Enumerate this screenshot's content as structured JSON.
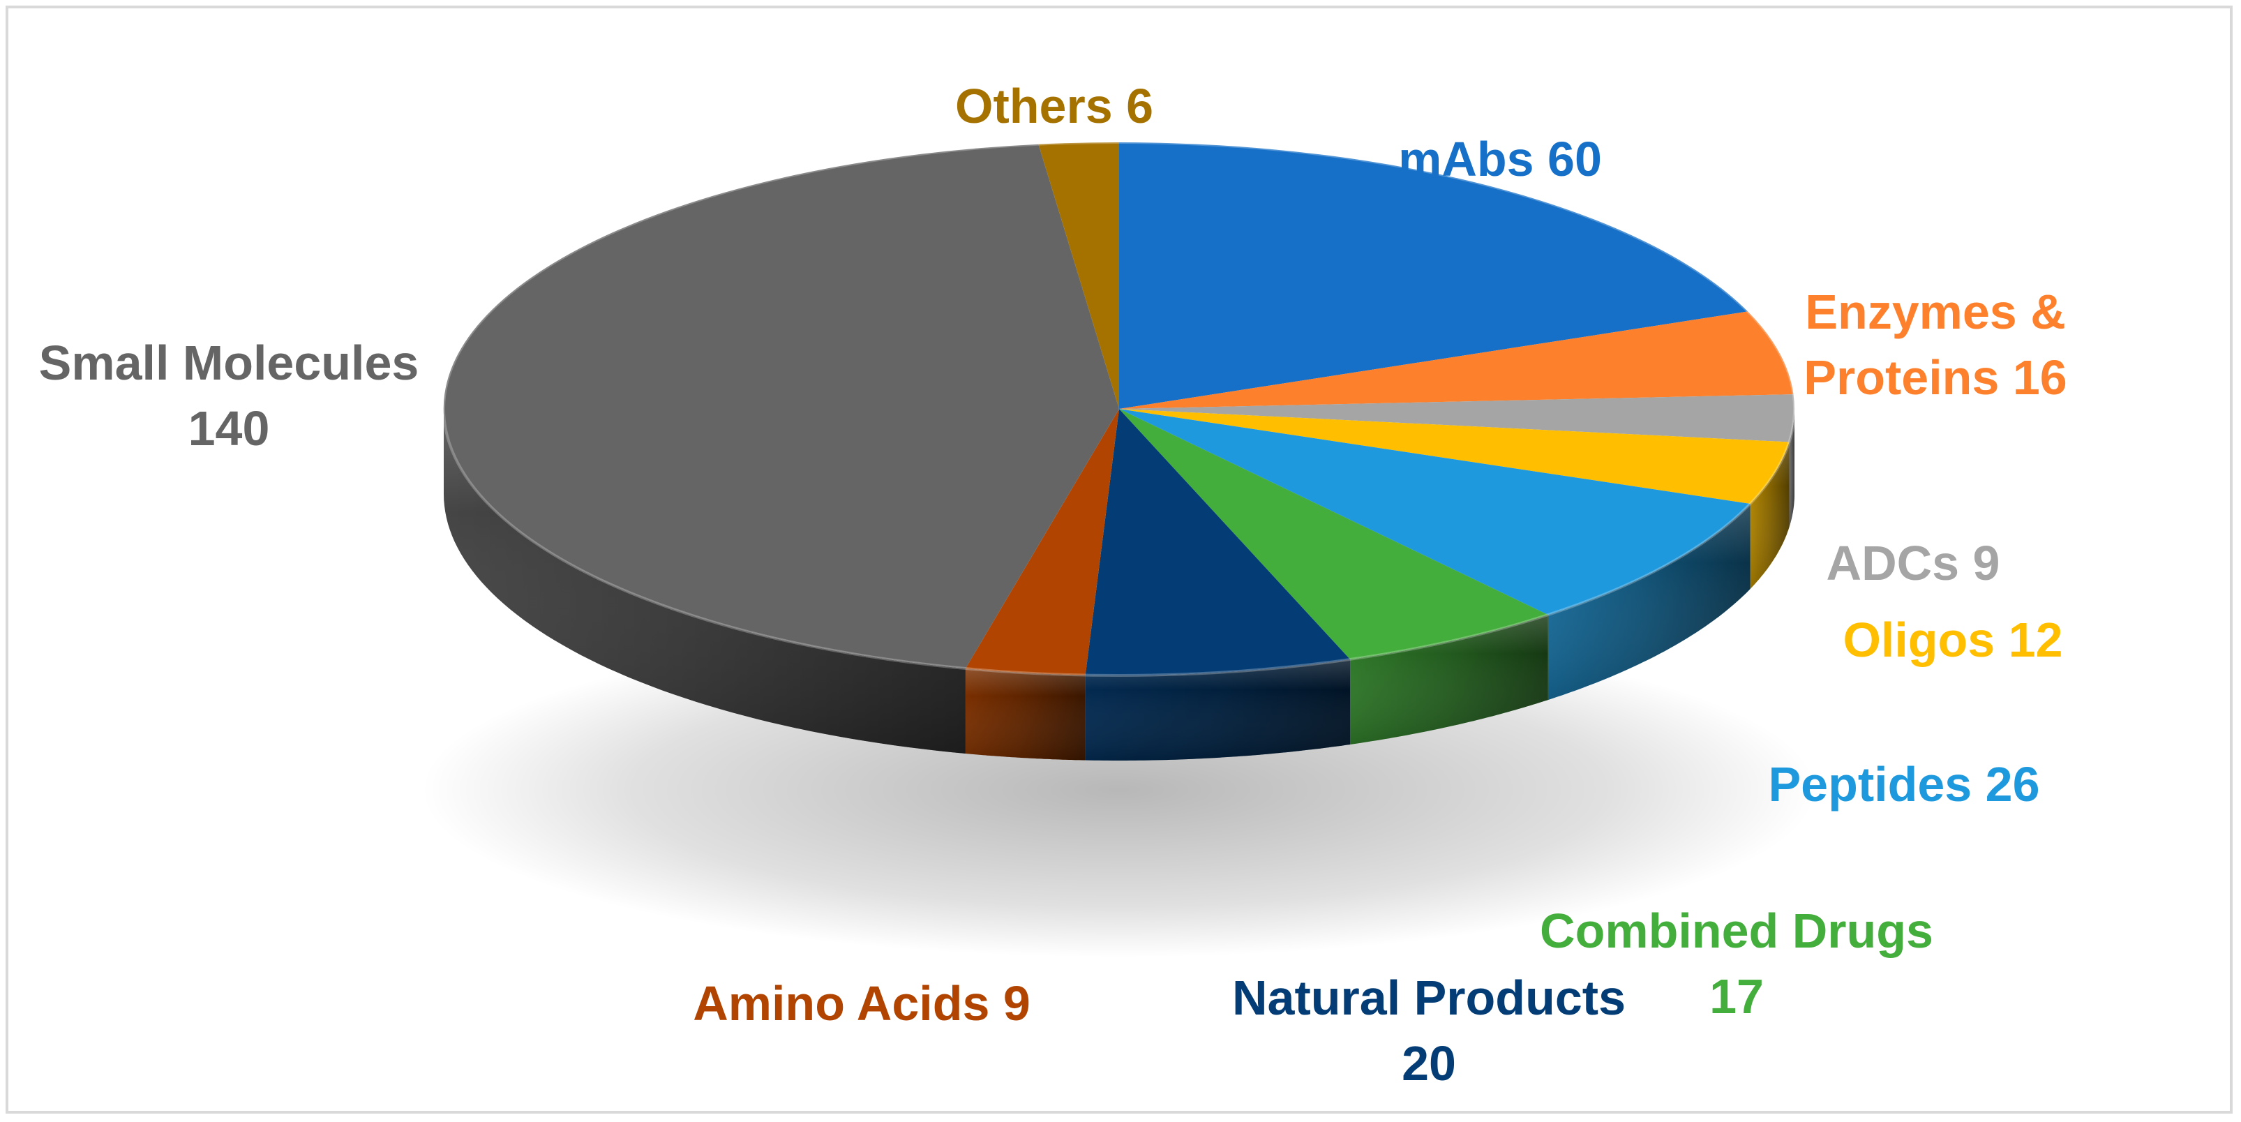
{
  "chart_data": {
    "type": "pie",
    "style": "3d",
    "title": "",
    "slices": [
      {
        "label": "mAbs",
        "value": 60,
        "color": "#1670c8",
        "lines": [
          "mAbs 60"
        ]
      },
      {
        "label": "Enzymes & Proteins",
        "value": 16,
        "color": "#fd802c",
        "lines": [
          "Enzymes &",
          "Proteins 16"
        ]
      },
      {
        "label": "ADCs",
        "value": 9,
        "color": "#a5a5a5",
        "lines": [
          "ADCs 9"
        ]
      },
      {
        "label": "Oligos",
        "value": 12,
        "color": "#ffbf00",
        "lines": [
          "Oligos 12"
        ]
      },
      {
        "label": "Peptides",
        "value": 26,
        "color": "#1f99dd",
        "lines": [
          "Peptides 26"
        ]
      },
      {
        "label": "Combined Drugs",
        "value": 17,
        "color": "#43ae3b",
        "lines": [
          "Combined Drugs",
          "17"
        ]
      },
      {
        "label": "Natural Products",
        "value": 20,
        "color": "#043d75",
        "lines": [
          "Natural Products",
          "20"
        ]
      },
      {
        "label": "Amino Acids",
        "value": 9,
        "color": "#b14400",
        "lines": [
          "Amino Acids 9"
        ]
      },
      {
        "label": "Small Molecules",
        "value": 140,
        "color": "#656565",
        "lines": [
          "Small Molecules",
          "140"
        ]
      },
      {
        "label": "Others",
        "value": 6,
        "color": "#a57200",
        "lines": [
          "Others 6"
        ]
      }
    ],
    "legend": "none"
  }
}
